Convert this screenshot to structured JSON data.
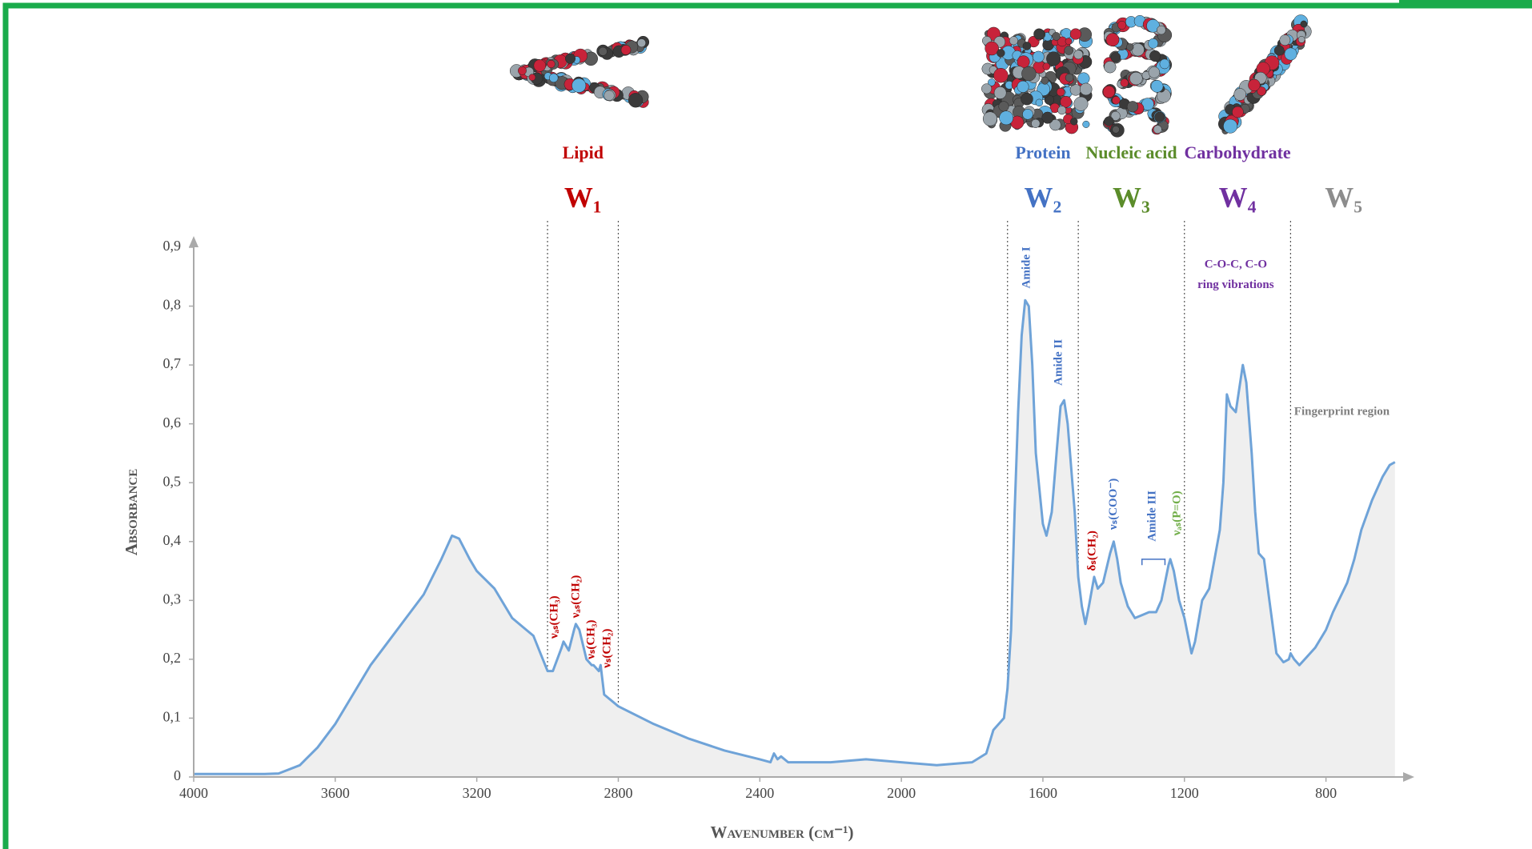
{
  "chart_data": {
    "type": "line",
    "xlabel": "Wavenumber (cm⁻¹)",
    "ylabel": "Absorbance",
    "xlim": [
      4000,
      600
    ],
    "ylim": [
      0,
      0.9
    ],
    "xticks": [
      4000,
      3600,
      3200,
      2800,
      2400,
      2000,
      1600,
      1200,
      800
    ],
    "yticks": [
      0,
      {
        "value": 0.1,
        "label": "0,1"
      },
      {
        "value": 0.2,
        "label": "0,2"
      },
      {
        "value": 0.3,
        "label": "0,3"
      },
      {
        "value": 0.4,
        "label": "0,4"
      },
      {
        "value": 0.5,
        "label": "0,5"
      },
      {
        "value": 0.6,
        "label": "0,6"
      },
      {
        "value": 0.7,
        "label": "0,7"
      },
      {
        "value": 0.8,
        "label": "0,8"
      },
      {
        "value": 0.9,
        "label": "0,9"
      }
    ],
    "color": "#6fa3d8",
    "x": [
      4000,
      3800,
      3760,
      3700,
      3650,
      3600,
      3550,
      3500,
      3450,
      3400,
      3350,
      3300,
      3270,
      3250,
      3220,
      3200,
      3150,
      3100,
      3060,
      3040,
      3020,
      3000,
      2985,
      2960,
      2955,
      2940,
      2925,
      2920,
      2910,
      2890,
      2875,
      2870,
      2855,
      2850,
      2840,
      2800,
      2700,
      2600,
      2500,
      2400,
      2370,
      2360,
      2350,
      2340,
      2320,
      2200,
      2100,
      2000,
      1900,
      1800,
      1760,
      1740,
      1710,
      1700,
      1690,
      1680,
      1670,
      1660,
      1650,
      1640,
      1630,
      1620,
      1600,
      1590,
      1575,
      1560,
      1550,
      1540,
      1530,
      1510,
      1500,
      1490,
      1480,
      1470,
      1455,
      1445,
      1430,
      1410,
      1400,
      1390,
      1380,
      1360,
      1340,
      1320,
      1300,
      1280,
      1265,
      1245,
      1240,
      1230,
      1215,
      1200,
      1180,
      1170,
      1150,
      1130,
      1100,
      1090,
      1080,
      1070,
      1055,
      1045,
      1035,
      1025,
      1010,
      1000,
      990,
      975,
      960,
      940,
      920,
      905,
      900,
      890,
      875,
      860,
      830,
      800,
      780,
      740,
      720,
      700,
      670,
      640,
      620,
      605
    ],
    "values": [
      0.005,
      0.005,
      0.006,
      0.02,
      0.05,
      0.09,
      0.14,
      0.19,
      0.23,
      0.27,
      0.31,
      0.37,
      0.41,
      0.405,
      0.37,
      0.35,
      0.32,
      0.27,
      0.25,
      0.24,
      0.21,
      0.18,
      0.18,
      0.22,
      0.23,
      0.215,
      0.25,
      0.26,
      0.25,
      0.2,
      0.19,
      0.19,
      0.18,
      0.19,
      0.14,
      0.12,
      0.09,
      0.065,
      0.045,
      0.03,
      0.025,
      0.04,
      0.03,
      0.035,
      0.025,
      0.025,
      0.03,
      0.025,
      0.02,
      0.025,
      0.04,
      0.08,
      0.1,
      0.15,
      0.25,
      0.45,
      0.62,
      0.75,
      0.81,
      0.8,
      0.7,
      0.55,
      0.43,
      0.41,
      0.45,
      0.56,
      0.63,
      0.64,
      0.6,
      0.45,
      0.34,
      0.29,
      0.26,
      0.29,
      0.34,
      0.32,
      0.33,
      0.38,
      0.4,
      0.37,
      0.33,
      0.29,
      0.27,
      0.275,
      0.28,
      0.28,
      0.3,
      0.36,
      0.37,
      0.35,
      0.3,
      0.27,
      0.21,
      0.23,
      0.3,
      0.32,
      0.42,
      0.5,
      0.65,
      0.63,
      0.62,
      0.66,
      0.7,
      0.67,
      0.55,
      0.45,
      0.38,
      0.37,
      0.3,
      0.21,
      0.195,
      0.2,
      0.21,
      0.2,
      0.19,
      0.2,
      0.22,
      0.25,
      0.28,
      0.33,
      0.37,
      0.42,
      0.47,
      0.51,
      0.53,
      0.535
    ],
    "regions": [
      {
        "label": "W₁",
        "group": "Lipid",
        "color": "#c00000",
        "from": 3000,
        "to": 2800
      },
      {
        "label": "W₂",
        "group": "Protein",
        "color": "#4472c4",
        "from": 1700,
        "to": 1500
      },
      {
        "label": "W₃",
        "group": "Nucleic acid",
        "color": "#5b8c2a",
        "from": 1500,
        "to": 1200
      },
      {
        "label": "W₄",
        "group": "Carbohydrate",
        "color": "#7030a0",
        "from": 1200,
        "to": 900
      },
      {
        "label": "W₅",
        "color": "#8c8c8c",
        "from": 900,
        "to": 600
      }
    ],
    "annotations": [
      {
        "text": "νₐₛ(CH₃)",
        "color": "#c00000"
      },
      {
        "text": "νₐₛ(CH₂)",
        "color": "#c00000"
      },
      {
        "text": "νₛ(CH₃)",
        "color": "#c00000"
      },
      {
        "text": "νₛ(CH₂)",
        "color": "#c00000"
      },
      {
        "text": "Amide I",
        "color": "#4472c4"
      },
      {
        "text": "Amide II",
        "color": "#4472c4"
      },
      {
        "text": "δₛ(CH₂)",
        "color": "#c00000"
      },
      {
        "text": "νₛ(COO⁻)",
        "color": "#4472c4"
      },
      {
        "text": "Amide III",
        "color": "#4472c4"
      },
      {
        "text": "νₐₛ(P=O)",
        "color": "#70ad47"
      },
      {
        "text": "C-O-C, C-O",
        "color": "#7030a0"
      },
      {
        "text": "ring vibrations",
        "color": "#7030a0"
      },
      {
        "text": "Fingerprint region",
        "color": "#7f7f7f"
      }
    ]
  }
}
